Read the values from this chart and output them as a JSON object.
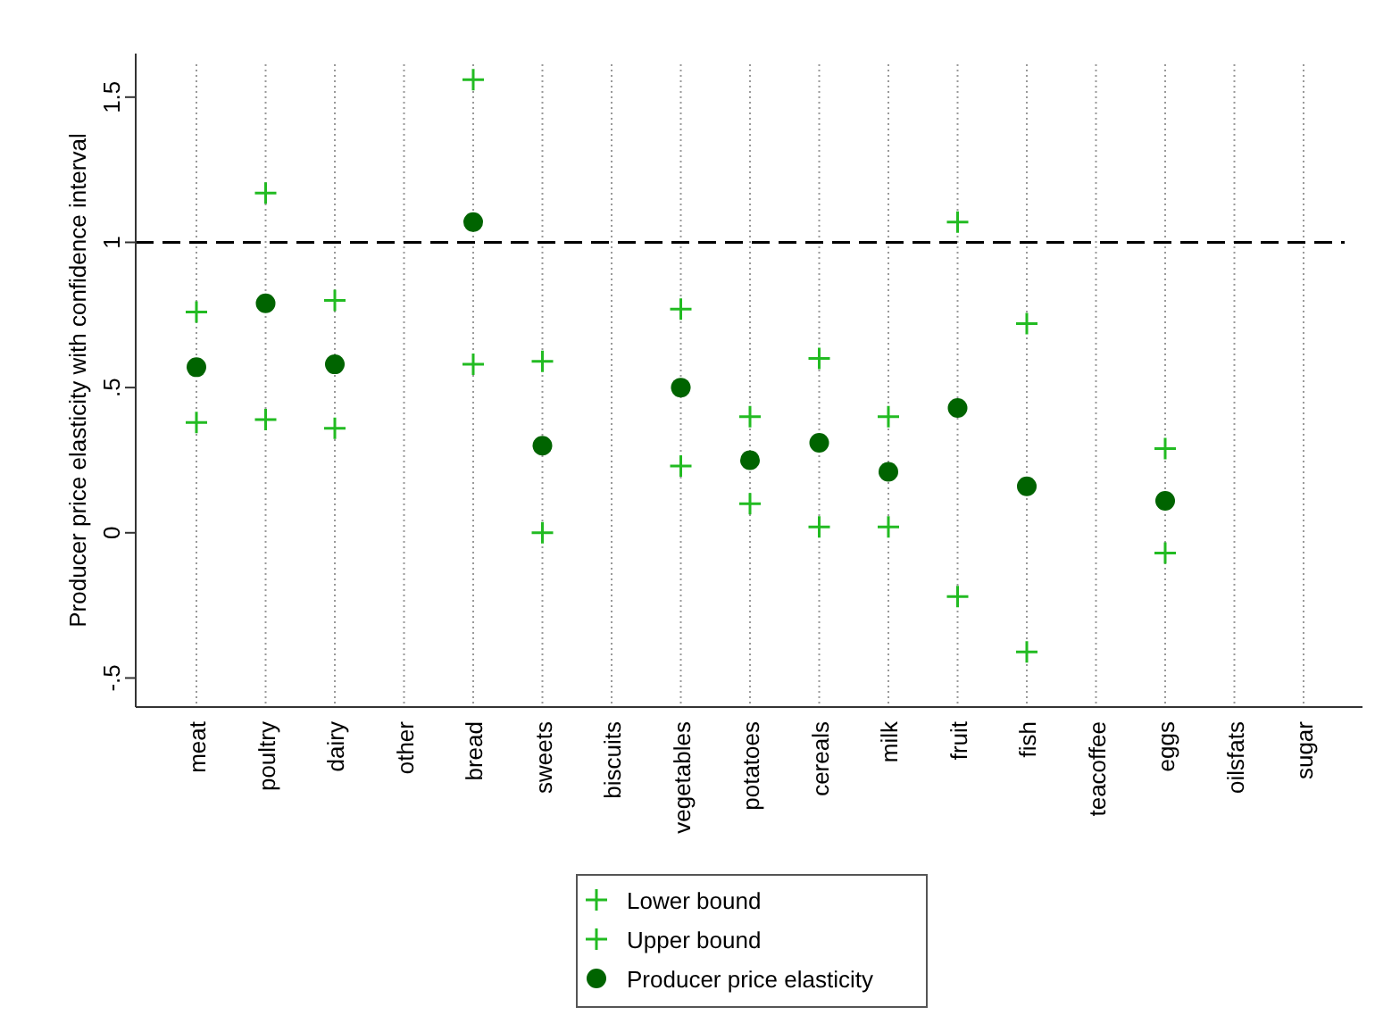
{
  "chart_data": {
    "type": "scatter",
    "ylabel": "Producer price elasticity with confidence interval",
    "categories": [
      "meat",
      "poultry",
      "dairy",
      "other",
      "bread",
      "sweets",
      "biscuits",
      "vegetables",
      "potatoes",
      "cereals",
      "milk",
      "fruit",
      "fish",
      "teacoffee",
      "eggs",
      "oilsfats",
      "sugar"
    ],
    "series": [
      {
        "name": "Lower bound",
        "color": "#22bb22",
        "marker": "cross",
        "values": [
          0.38,
          0.39,
          0.36,
          null,
          0.58,
          0.0,
          null,
          0.23,
          0.1,
          0.02,
          0.02,
          -0.22,
          -0.41,
          null,
          -0.07,
          null,
          null
        ]
      },
      {
        "name": "Upper bound",
        "color": "#22bb22",
        "marker": "cross",
        "values": [
          0.76,
          1.17,
          0.8,
          null,
          1.56,
          0.59,
          null,
          0.77,
          0.4,
          0.6,
          0.4,
          1.07,
          0.72,
          null,
          0.29,
          null,
          null
        ]
      },
      {
        "name": "Producer price elasticity",
        "color": "#006400",
        "marker": "circle",
        "values": [
          0.57,
          0.79,
          0.58,
          null,
          1.07,
          0.3,
          null,
          0.5,
          0.25,
          0.31,
          0.21,
          0.43,
          0.16,
          null,
          0.11,
          null,
          null
        ]
      }
    ],
    "ylim": [
      -0.6,
      1.65
    ],
    "yticks": [
      {
        "value": -0.5,
        "label": "-.5"
      },
      0,
      {
        "value": 0.5,
        "label": ".5"
      },
      1,
      1.5
    ],
    "ref_lines": [
      {
        "axis": "y",
        "value": 1,
        "line_style": "dashed",
        "color": "#000000"
      }
    ],
    "grid": "x",
    "legend": "bottom"
  }
}
